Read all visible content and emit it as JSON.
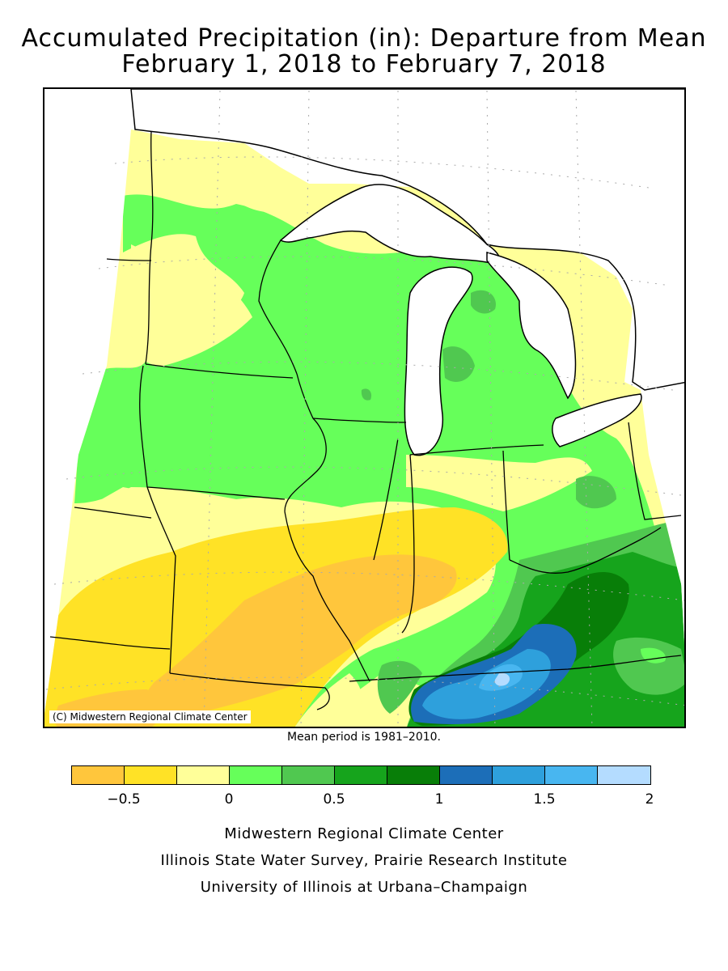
{
  "title": {
    "line1": "Accumulated Precipitation (in): Departure from Mean",
    "line2": "February 1, 2018 to February 7, 2018"
  },
  "map": {
    "copyright": "(C) Midwestern Regional Climate Center",
    "mean_period_note": "Mean period is 1981–2010.",
    "region": "Midwest United States",
    "water_color": "#ffffff"
  },
  "legend": {
    "unit": "in",
    "bins": [
      {
        "from": -0.75,
        "to": -0.5,
        "color": "#ffc63c"
      },
      {
        "from": -0.5,
        "to": -0.25,
        "color": "#ffe226"
      },
      {
        "from": -0.25,
        "to": 0,
        "color": "#ffff99"
      },
      {
        "from": 0,
        "to": 0.25,
        "color": "#66ff5a"
      },
      {
        "from": 0.25,
        "to": 0.5,
        "color": "#50c850"
      },
      {
        "from": 0.5,
        "to": 0.75,
        "color": "#16a41c"
      },
      {
        "from": 0.75,
        "to": 1,
        "color": "#087e08"
      },
      {
        "from": 1,
        "to": 1.25,
        "color": "#1c6eb8"
      },
      {
        "from": 1.25,
        "to": 1.5,
        "color": "#2ea0dc"
      },
      {
        "from": 1.5,
        "to": 1.75,
        "color": "#48b6f0"
      },
      {
        "from": 1.75,
        "to": 2,
        "color": "#b4dcff"
      }
    ],
    "tick_labels": [
      {
        "value": -0.5,
        "label": "−0.5"
      },
      {
        "value": 0,
        "label": "0"
      },
      {
        "value": 0.5,
        "label": "0.5"
      },
      {
        "value": 1,
        "label": "1"
      },
      {
        "value": 1.5,
        "label": "1.5"
      },
      {
        "value": 2,
        "label": "2"
      }
    ]
  },
  "credits": {
    "line1": "Midwestern Regional Climate Center",
    "line2": "Illinois State Water Survey, Prairie Research Institute",
    "line3": "University of Illinois at Urbana–Champaign"
  }
}
